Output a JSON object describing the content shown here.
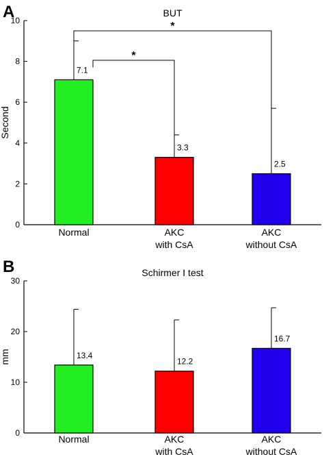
{
  "chart_data": [
    {
      "type": "bar",
      "panel": "A",
      "title": "BUT",
      "ylabel": "Second",
      "xlabel": "",
      "ylim": [
        0,
        10
      ],
      "yticks": [
        "0",
        "2",
        "4",
        "6",
        "8",
        "10"
      ],
      "categories": [
        [
          "Normal"
        ],
        [
          "AKC",
          "with CsA"
        ],
        [
          "AKC",
          "without CsA"
        ]
      ],
      "values": [
        7.1,
        3.3,
        2.5
      ],
      "error_upper": [
        9.0,
        4.4,
        5.7
      ],
      "value_labels": [
        "7.1",
        "3.3",
        "2.5"
      ],
      "colors": [
        "#22ee22",
        "#ff0000",
        "#2200ee"
      ],
      "significance": [
        {
          "from": 0,
          "to": 2,
          "label": "*"
        },
        {
          "from": 0,
          "to": 1,
          "label": "*"
        }
      ],
      "grid": false
    },
    {
      "type": "bar",
      "panel": "B",
      "title": "Schirmer I test",
      "ylabel": "mm",
      "xlabel": "",
      "ylim": [
        0,
        30
      ],
      "yticks": [
        "0",
        "10",
        "20",
        "30"
      ],
      "categories": [
        [
          "Normal"
        ],
        [
          "AKC",
          "with CsA"
        ],
        [
          "AKC",
          "without CsA"
        ]
      ],
      "values": [
        13.4,
        12.2,
        16.7
      ],
      "error_upper": [
        24.4,
        22.3,
        24.7
      ],
      "value_labels": [
        "13.4",
        "12.2",
        "16.7"
      ],
      "colors": [
        "#22ee22",
        "#ff0000",
        "#2200ee"
      ],
      "grid": false
    }
  ]
}
